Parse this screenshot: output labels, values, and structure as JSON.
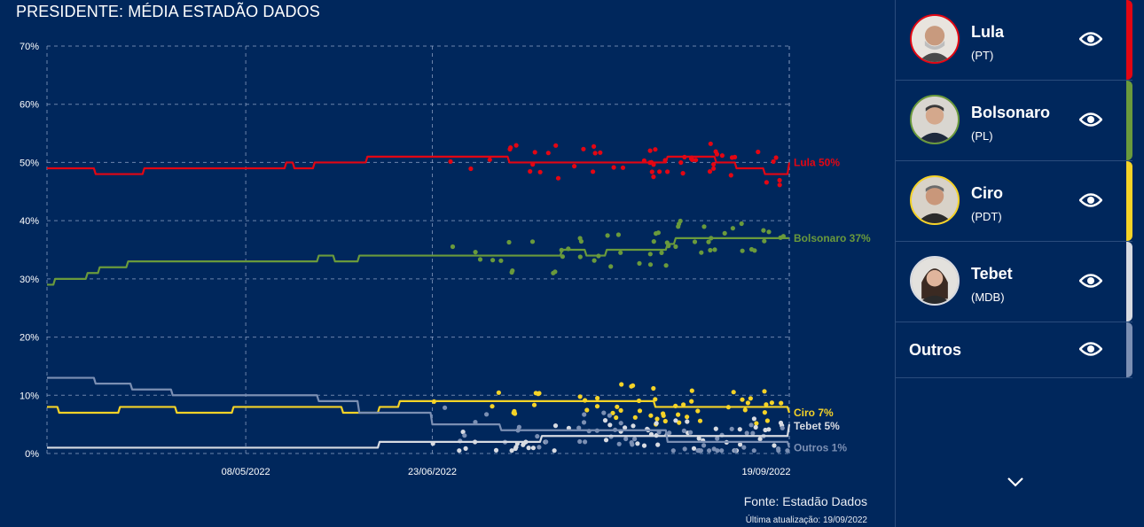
{
  "title": "PRESIDENTE: MÉDIA ESTADÃO DADOS",
  "source": "Fonte: Estadão Dados",
  "updated": "Última atualização: 19/09/2022",
  "candidates": [
    {
      "name": "Lula",
      "party": "(PT)",
      "color": "#e30613",
      "icon": "eye-icon"
    },
    {
      "name": "Bolsonaro",
      "party": "(PL)",
      "color": "#6a9a3c",
      "icon": "eye-icon"
    },
    {
      "name": "Ciro",
      "party": "(PDT)",
      "color": "#f5d327",
      "icon": "eye-icon"
    },
    {
      "name": "Tebet",
      "party": "(MDB)",
      "color": "#d8dbe2",
      "icon": "eye-icon"
    },
    {
      "name": "Outros",
      "party": "",
      "color": "#7b8fb3",
      "icon": "eye-icon"
    }
  ],
  "chart_data": {
    "type": "line",
    "title": "PRESIDENTE: MÉDIA ESTADÃO DADOS",
    "x_range": [
      "2022-03-20",
      "2022-09-19"
    ],
    "x_ticks": [
      "08/05/2022",
      "23/06/2022",
      "19/09/2022"
    ],
    "y_range": [
      0,
      70
    ],
    "y_ticks": [
      "0%",
      "10%",
      "20%",
      "30%",
      "40%",
      "50%",
      "60%",
      "70%"
    ],
    "grid": true,
    "series": [
      {
        "name": "Lula",
        "color": "#e30613",
        "end_label": "Lula 50%",
        "x": [
          "2022-03-20",
          "2022-04-01",
          "2022-04-13",
          "2022-05-12",
          "2022-05-18",
          "2022-05-20",
          "2022-05-25",
          "2022-06-07",
          "2022-07-01",
          "2022-07-12",
          "2022-08-01",
          "2022-08-20",
          "2022-08-24",
          "2022-09-01",
          "2022-09-06",
          "2022-09-10",
          "2022-09-13",
          "2022-09-19"
        ],
        "y": [
          49,
          48,
          49,
          49,
          50,
          49,
          50,
          51,
          51,
          50,
          50,
          51,
          51,
          50,
          49,
          49,
          48,
          50
        ]
      },
      {
        "name": "Bolsonaro",
        "color": "#6a9a3c",
        "end_label": "Bolsonaro 37%",
        "x": [
          "2022-03-20",
          "2022-03-22",
          "2022-03-30",
          "2022-04-02",
          "2022-04-09",
          "2022-05-12",
          "2022-05-26",
          "2022-05-30",
          "2022-06-01",
          "2022-06-05",
          "2022-06-23",
          "2022-07-25",
          "2022-07-31",
          "2022-08-02",
          "2022-08-05",
          "2022-08-12",
          "2022-08-20",
          "2022-08-22",
          "2022-09-19"
        ],
        "y": [
          29,
          30,
          31,
          32,
          33,
          33,
          34,
          33,
          33,
          34,
          34,
          35,
          34,
          34,
          35,
          35,
          36,
          37,
          37
        ]
      },
      {
        "name": "Ciro",
        "color": "#f5d327",
        "end_label": "Ciro 7%",
        "x": [
          "2022-03-20",
          "2022-03-23",
          "2022-04-01",
          "2022-04-07",
          "2022-04-21",
          "2022-05-05",
          "2022-05-30",
          "2022-06-01",
          "2022-06-10",
          "2022-06-15",
          "2022-08-15",
          "2022-08-17",
          "2022-09-15",
          "2022-09-19"
        ],
        "y": [
          8,
          7,
          7,
          8,
          7,
          8,
          8,
          7,
          8,
          9,
          9,
          8,
          8,
          7
        ]
      },
      {
        "name": "Tebet",
        "color": "#d8dbe2",
        "end_label": "Tebet 5%",
        "x": [
          "2022-03-20",
          "2022-04-01",
          "2022-04-10",
          "2022-05-10",
          "2022-05-26",
          "2022-06-01",
          "2022-06-10",
          "2022-06-23",
          "2022-07-10",
          "2022-07-20",
          "2022-08-20",
          "2022-09-01",
          "2022-09-19"
        ],
        "y": [
          1,
          1,
          1,
          1,
          1,
          1,
          2,
          2,
          2,
          3,
          3,
          3,
          5
        ]
      },
      {
        "name": "Outros",
        "color": "#7b8fb3",
        "end_label": "Outros 1%",
        "x": [
          "2022-03-20",
          "2022-04-01",
          "2022-04-10",
          "2022-04-20",
          "2022-05-20",
          "2022-05-26",
          "2022-06-05",
          "2022-06-23",
          "2022-07-10",
          "2022-08-15",
          "2022-08-20",
          "2022-09-01",
          "2022-09-19"
        ],
        "y": [
          13,
          12,
          11,
          10,
          10,
          9,
          7,
          5,
          4,
          4,
          2,
          2,
          1
        ]
      }
    ]
  }
}
